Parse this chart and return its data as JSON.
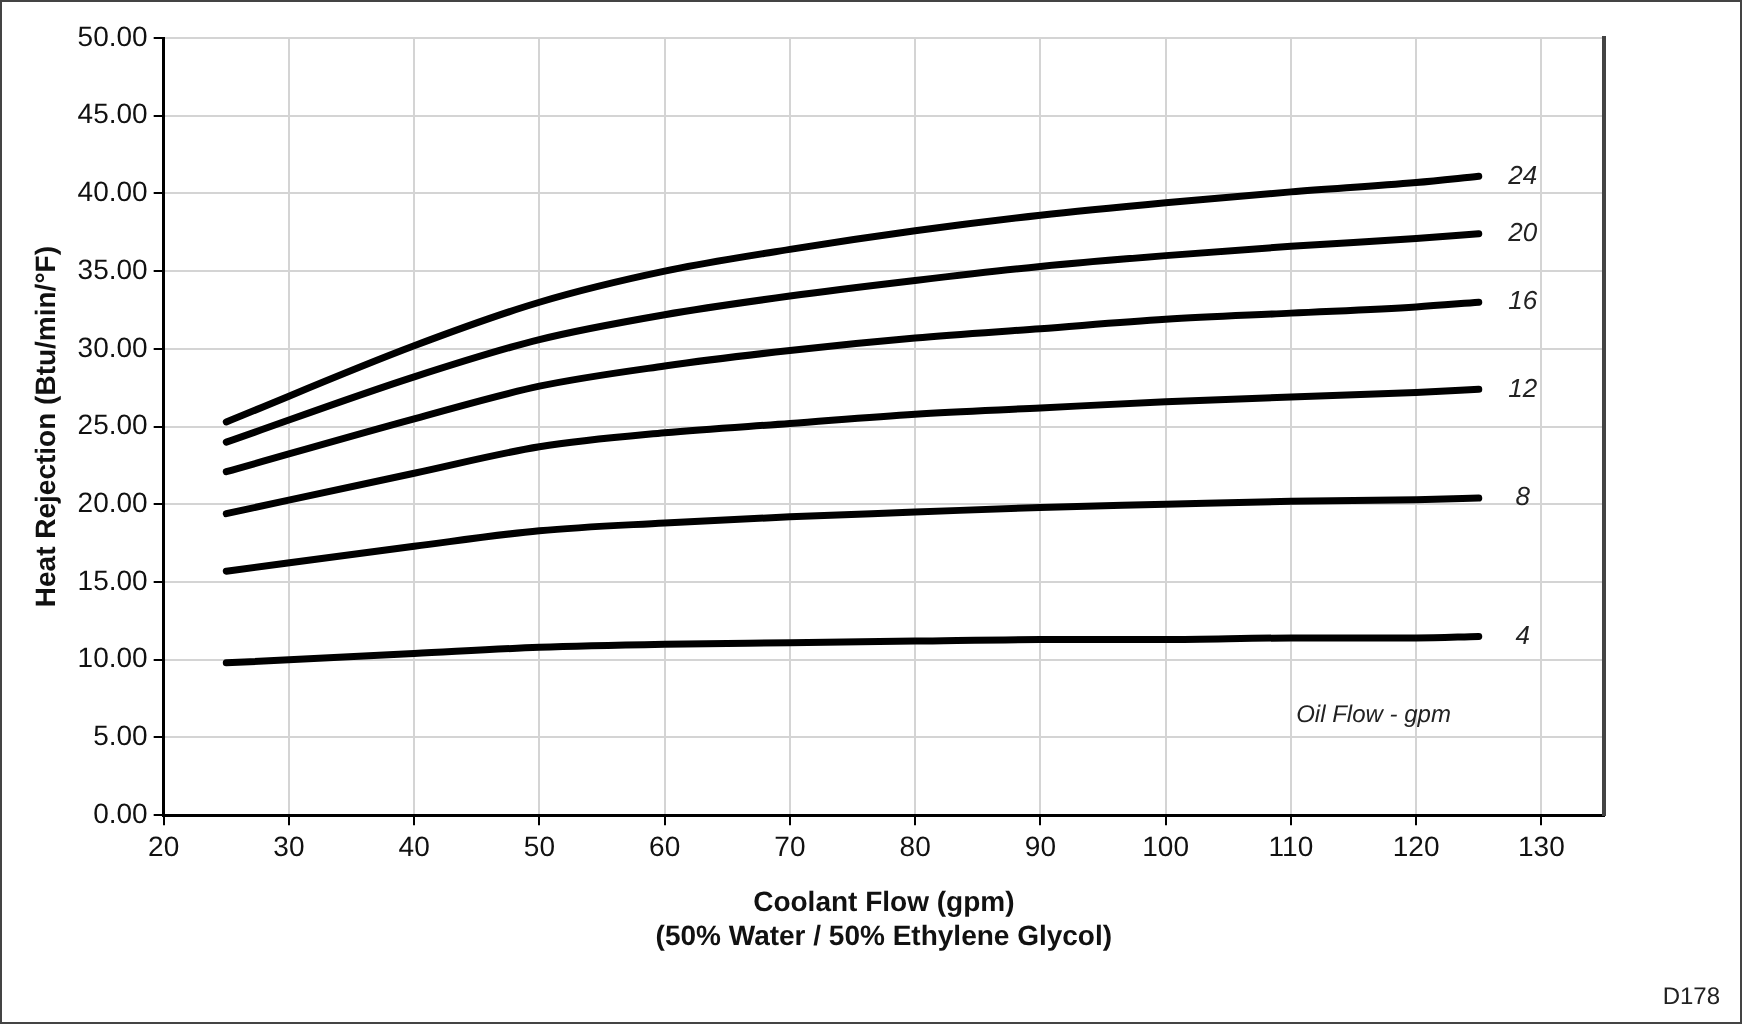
{
  "chart_data": {
    "type": "line",
    "xlabel": "Coolant Flow (gpm)\n(50% Water / 50% Ethylene Glycol)",
    "ylabel": "Heat Rejection (Btu/min/°F)",
    "x": [
      25,
      40,
      50,
      60,
      70,
      80,
      90,
      100,
      110,
      120,
      125
    ],
    "series": [
      {
        "name": "24",
        "color": "#000000",
        "values": [
          25.3,
          30.2,
          33.0,
          35.0,
          36.4,
          37.6,
          38.6,
          39.4,
          40.1,
          40.7,
          41.1
        ]
      },
      {
        "name": "20",
        "color": "#000000",
        "values": [
          24.0,
          28.2,
          30.6,
          32.2,
          33.4,
          34.4,
          35.3,
          36.0,
          36.6,
          37.1,
          37.4
        ]
      },
      {
        "name": "16",
        "color": "#000000",
        "values": [
          22.1,
          25.5,
          27.6,
          28.9,
          29.9,
          30.7,
          31.3,
          31.9,
          32.3,
          32.7,
          33.0
        ]
      },
      {
        "name": "12",
        "color": "#000000",
        "values": [
          19.4,
          22.0,
          23.7,
          24.6,
          25.2,
          25.8,
          26.2,
          26.6,
          26.9,
          27.2,
          27.4
        ]
      },
      {
        "name": "8",
        "color": "#000000",
        "values": [
          15.7,
          17.3,
          18.3,
          18.8,
          19.2,
          19.5,
          19.8,
          20.0,
          20.2,
          20.3,
          20.4
        ]
      },
      {
        "name": "4",
        "color": "#000000",
        "values": [
          9.8,
          10.4,
          10.8,
          11.0,
          11.1,
          11.2,
          11.3,
          11.3,
          11.4,
          11.4,
          11.5
        ]
      }
    ],
    "xlim": [
      20,
      135
    ],
    "xticks": [
      20,
      30,
      40,
      50,
      60,
      70,
      80,
      90,
      100,
      110,
      120,
      130
    ],
    "ylim": [
      0,
      50
    ],
    "yticks": [
      {
        "value": 0,
        "label": "0.00"
      },
      {
        "value": 5,
        "label": "5.00"
      },
      {
        "value": 10,
        "label": "10.00"
      },
      {
        "value": 15,
        "label": "15.00"
      },
      {
        "value": 20,
        "label": "20.00"
      },
      {
        "value": 25,
        "label": "25.00"
      },
      {
        "value": 30,
        "label": "30.00"
      },
      {
        "value": 35,
        "label": "35.00"
      },
      {
        "value": 40,
        "label": "40.00"
      },
      {
        "value": 45,
        "label": "45.00"
      },
      {
        "value": 50,
        "label": "50.00"
      }
    ],
    "grid": true,
    "legend": false,
    "marker": "none",
    "line_style": "solid",
    "annotations": [
      "Oil Flow - gpm",
      "D178"
    ]
  }
}
